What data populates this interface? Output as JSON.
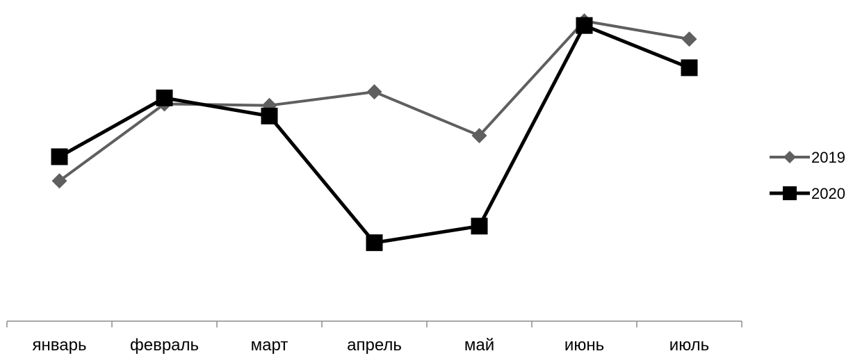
{
  "chart_data": {
    "type": "line",
    "title": "",
    "xlabel": "",
    "ylabel": "",
    "categories": [
      "январь",
      "февраль",
      "март",
      "апрель",
      "май",
      "июнь",
      "июль"
    ],
    "ylim": [
      0,
      100
    ],
    "grid": false,
    "legend_position": "right",
    "series": [
      {
        "name": "2019",
        "color": "#5f5f5f",
        "marker": "diamond",
        "values": [
          46.5,
          72,
          71.5,
          76,
          61.5,
          99.5,
          93.5
        ]
      },
      {
        "name": "2020",
        "color": "#000000",
        "marker": "square",
        "values": [
          54.5,
          74,
          68,
          26,
          31.5,
          98,
          84
        ]
      }
    ]
  }
}
